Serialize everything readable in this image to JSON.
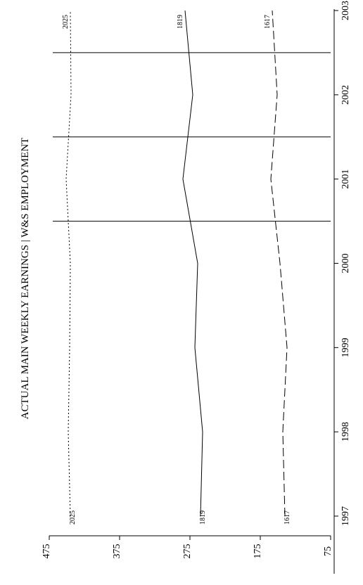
{
  "chart_data": {
    "type": "line",
    "orientation": "rotated-90-counterclockwise",
    "title": "ACTUAL MAIN WEEKLY EARNINGS | W&S EMPLOYMENT",
    "xlabel": "",
    "ylabel": "",
    "xlim": [
      1997,
      2003
    ],
    "ylim": [
      75,
      475
    ],
    "x_ticks": [
      "1997",
      "1998",
      "1999",
      "2000",
      "2001",
      "2002",
      "2003"
    ],
    "y_ticks": [
      "475",
      "375",
      "275",
      "175",
      "75"
    ],
    "reference_lines_x": [
      2000.5,
      2001.5,
      2002.5
    ],
    "grid": false,
    "legend": "none",
    "series": [
      {
        "name": "2025",
        "style": "dotted",
        "x": [
          1997,
          1998,
          1999,
          2000,
          2001,
          2002,
          2003
        ],
        "values": [
          445,
          448,
          446,
          445,
          451,
          444,
          445
        ]
      },
      {
        "name": "1819",
        "style": "solid",
        "x": [
          1997,
          1998,
          1999,
          2000,
          2001,
          2002,
          2003
        ],
        "values": [
          260,
          257,
          268,
          264,
          285,
          271,
          282
        ]
      },
      {
        "name": "1617",
        "style": "dashed",
        "x": [
          1997,
          1998,
          1999,
          2000,
          2001,
          2002,
          2003
        ],
        "values": [
          140,
          143,
          137,
          147,
          160,
          151,
          158
        ]
      }
    ]
  }
}
